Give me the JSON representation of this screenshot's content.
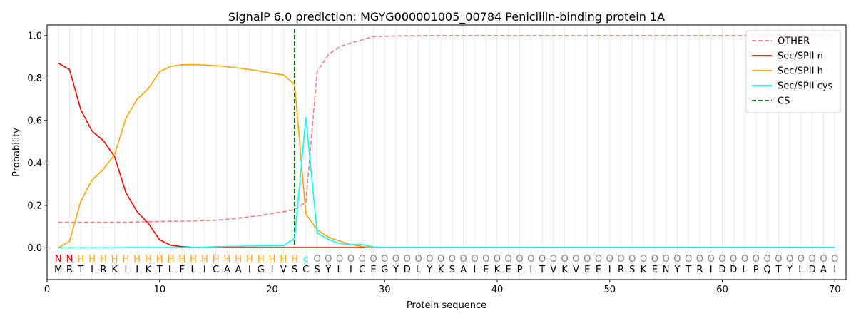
{
  "chart_data": {
    "type": "line",
    "title": "SignalP 6.0 prediction: MGYG000001005_00784 Penicillin-binding protein 1A",
    "xlabel": "Protein sequence",
    "ylabel": "Probability",
    "xlim": [
      0,
      71
    ],
    "ylim": [
      -0.15,
      1.05
    ],
    "xticks": [
      0,
      10,
      20,
      30,
      40,
      50,
      60,
      70
    ],
    "yticks": [
      0.0,
      0.2,
      0.4,
      0.6,
      0.8,
      1.0
    ],
    "ytick_labels": [
      "0.0",
      "0.2",
      "0.4",
      "0.6",
      "0.8",
      "1.0"
    ],
    "grid": "vertical lines at every residue",
    "legend_position": "top-right",
    "cleavage_site": 22,
    "sequence": [
      "M",
      "R",
      "T",
      "I",
      "R",
      "K",
      "I",
      "I",
      "K",
      "T",
      "L",
      "F",
      "L",
      "I",
      "C",
      "A",
      "A",
      "I",
      "G",
      "I",
      "V",
      "S",
      "C",
      "S",
      "Y",
      "L",
      "I",
      "C",
      "E",
      "G",
      "Y",
      "D",
      "L",
      "Y",
      "K",
      "S",
      "A",
      "I",
      "E",
      "K",
      "E",
      "P",
      "I",
      "T",
      "V",
      "K",
      "V",
      "E",
      "E",
      "I",
      "R",
      "S",
      "K",
      "E",
      "N",
      "Y",
      "T",
      "R",
      "I",
      "D",
      "D",
      "L",
      "P",
      "Q",
      "T",
      "Y",
      "L",
      "D",
      "A",
      "I"
    ],
    "labels": [
      "N",
      "N",
      "H",
      "H",
      "H",
      "H",
      "H",
      "H",
      "H",
      "H",
      "H",
      "H",
      "H",
      "H",
      "H",
      "H",
      "H",
      "H",
      "H",
      "H",
      "H",
      "H",
      "C",
      "O",
      "O",
      "O",
      "O",
      "O",
      "O",
      "O",
      "O",
      "O",
      "O",
      "O",
      "O",
      "O",
      "O",
      "O",
      "O",
      "O",
      "O",
      "O",
      "O",
      "O",
      "O",
      "O",
      "O",
      "O",
      "O",
      "O",
      "O",
      "O",
      "O",
      "O",
      "O",
      "O",
      "O",
      "O",
      "O",
      "O",
      "O",
      "O",
      "O",
      "O",
      "O",
      "O",
      "O",
      "O",
      "O",
      "O"
    ],
    "label_colors": {
      "N": "#ff0000",
      "H": "#ffa500",
      "C": "#00ffff",
      "O": "#808080"
    },
    "series": [
      {
        "name": "OTHER",
        "color": "#f08080",
        "style": "dashed",
        "values": [
          0.12,
          0.12,
          0.12,
          0.12,
          0.12,
          0.12,
          0.12,
          0.122,
          0.123,
          0.124,
          0.125,
          0.126,
          0.127,
          0.128,
          0.13,
          0.134,
          0.14,
          0.146,
          0.153,
          0.162,
          0.17,
          0.18,
          0.215,
          0.83,
          0.91,
          0.948,
          0.965,
          0.98,
          0.995,
          0.997,
          0.998,
          0.999,
          0.999,
          1,
          1,
          1,
          1,
          1,
          1,
          1,
          1,
          1,
          1,
          1,
          1,
          1,
          1,
          1,
          1,
          1,
          1,
          1,
          1,
          1,
          1,
          1,
          1,
          1,
          1,
          1,
          1,
          1,
          1,
          1,
          1,
          1,
          1,
          1,
          1,
          1
        ]
      },
      {
        "name": "Sec/SPII n",
        "color": "#ff0000",
        "style": "solid",
        "values": [
          0.87,
          0.84,
          0.65,
          0.55,
          0.505,
          0.43,
          0.26,
          0.17,
          0.115,
          0.038,
          0.012,
          0.005,
          0.002,
          0.001,
          0.001,
          0.001,
          0.001,
          0.001,
          0.001,
          0.001,
          0.001,
          0.001,
          0.001,
          0.001,
          0.001,
          0.001,
          0.001,
          0.001,
          0.001,
          0.001,
          0.001,
          0.001,
          0.001,
          0.001,
          0.001,
          0.001,
          0.001,
          0.001,
          0.001,
          0.001,
          0.001,
          0.001,
          0.001,
          0.001,
          0.001,
          0.001,
          0.001,
          0.001,
          0.001,
          0.001,
          0.001,
          0.001,
          0.001,
          0.001,
          0.001,
          0.001,
          0.001,
          0.001,
          0.001,
          0.001,
          0.001,
          0.001,
          0.001,
          0.001,
          0.001,
          0.001,
          0.001,
          0.001,
          0.001,
          0.001
        ]
      },
      {
        "name": "Sec/SPII h",
        "color": "#ffa500",
        "style": "solid",
        "values": [
          0.0,
          0.03,
          0.22,
          0.32,
          0.37,
          0.44,
          0.61,
          0.7,
          0.75,
          0.83,
          0.855,
          0.862,
          0.863,
          0.861,
          0.858,
          0.853,
          0.847,
          0.84,
          0.832,
          0.822,
          0.815,
          0.77,
          0.16,
          0.085,
          0.05,
          0.032,
          0.015,
          0.006,
          0.002,
          0.001,
          0.001,
          0.001,
          0.001,
          0.001,
          0.001,
          0.001,
          0.001,
          0.001,
          0.001,
          0.001,
          0.001,
          0.001,
          0.001,
          0.001,
          0.001,
          0.001,
          0.001,
          0.001,
          0.001,
          0.001,
          0.001,
          0.001,
          0.001,
          0.001,
          0.001,
          0.001,
          0.001,
          0.001,
          0.001,
          0.001,
          0.001,
          0.001,
          0.001,
          0.001,
          0.001,
          0.001,
          0.001,
          0.001,
          0.001,
          0.001
        ]
      },
      {
        "name": "Sec/SPII cys",
        "color": "#00ffff",
        "style": "solid",
        "values": [
          0.0,
          0.0,
          0.0,
          0.0,
          0.0,
          0.0,
          0.001,
          0.001,
          0.001,
          0.001,
          0.001,
          0.001,
          0.002,
          0.003,
          0.005,
          0.006,
          0.007,
          0.008,
          0.009,
          0.01,
          0.009,
          0.045,
          0.615,
          0.07,
          0.04,
          0.02,
          0.015,
          0.015,
          0.004,
          0.001,
          0.001,
          0.001,
          0.001,
          0.001,
          0.001,
          0.001,
          0.001,
          0.001,
          0.001,
          0.001,
          0.001,
          0.001,
          0.001,
          0.001,
          0.001,
          0.001,
          0.001,
          0.001,
          0.001,
          0.001,
          0.001,
          0.001,
          0.001,
          0.001,
          0.001,
          0.001,
          0.001,
          0.001,
          0.001,
          0.001,
          0.001,
          0.001,
          0.001,
          0.001,
          0.001,
          0.001,
          0.001,
          0.001,
          0.001,
          0.001
        ]
      }
    ],
    "cs_series": {
      "name": "CS",
      "color": "#006400",
      "style": "dashed"
    }
  }
}
